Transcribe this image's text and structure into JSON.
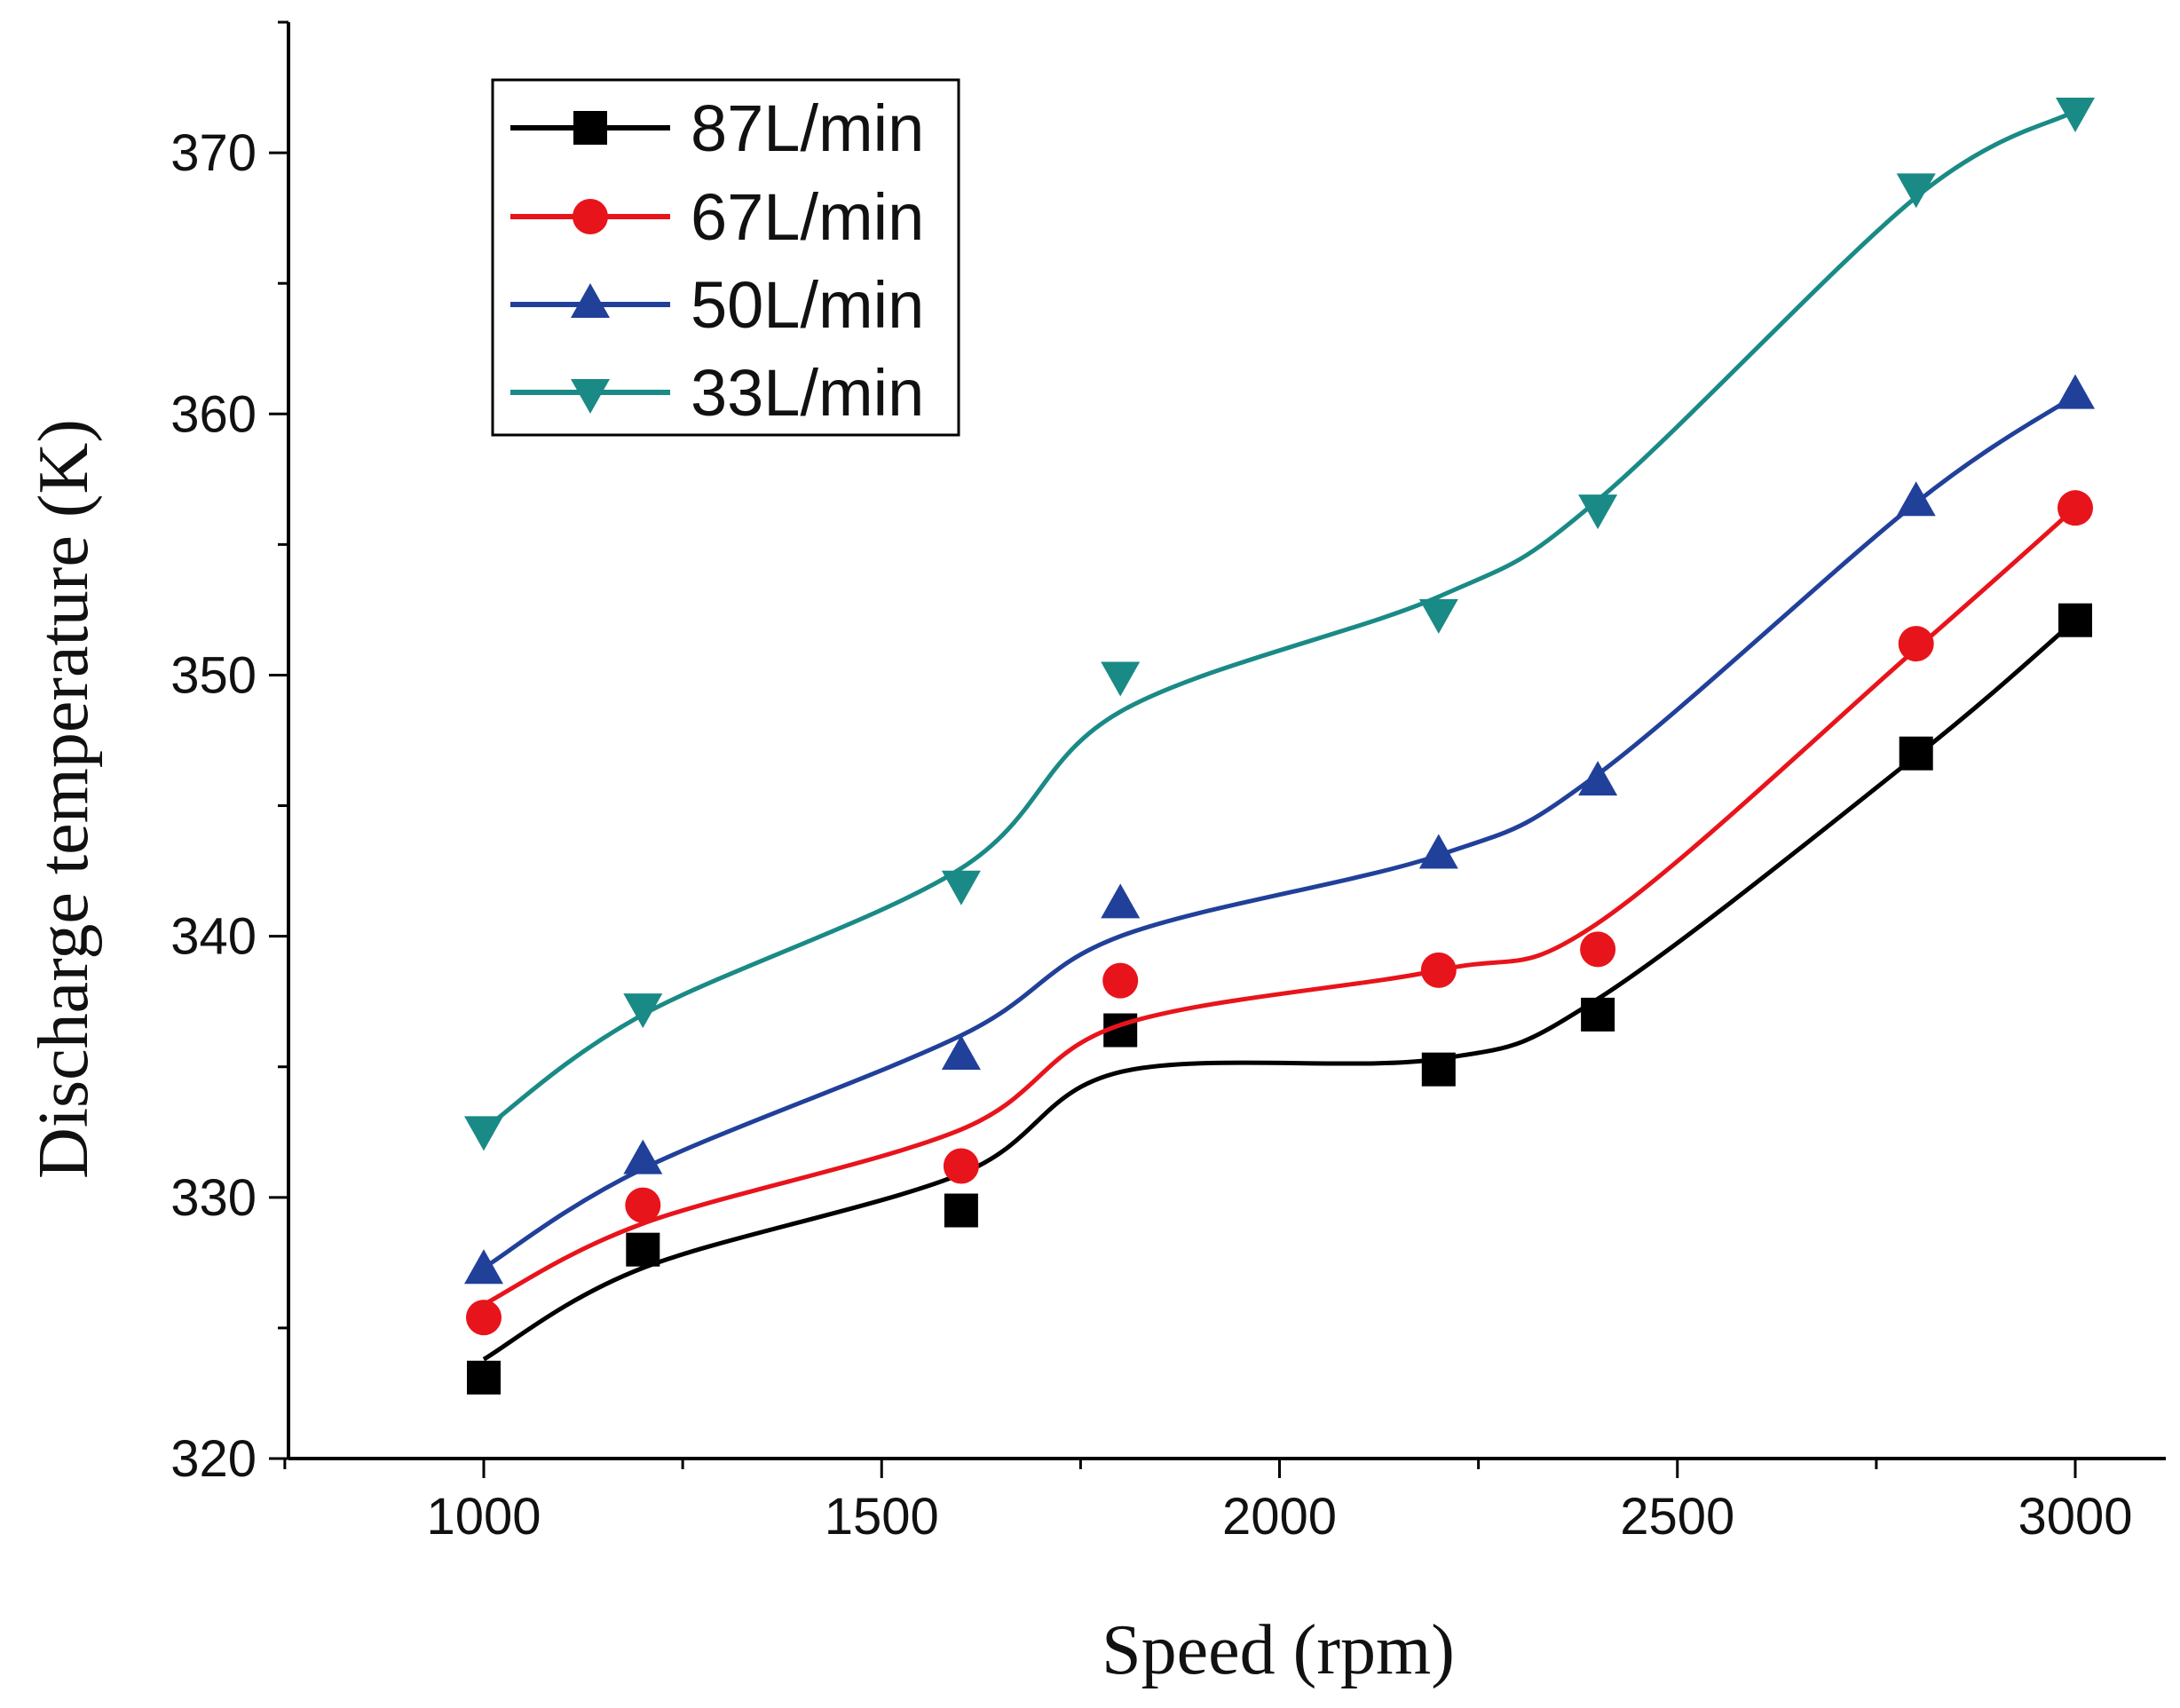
{
  "chart_data": {
    "type": "line",
    "title": "",
    "xlabel": "Speed (rpm)",
    "ylabel": "Discharge temperature (K)",
    "xlim": [
      750,
      3110
    ],
    "ylim": [
      320,
      375
    ],
    "x_ticks": [
      1000,
      1500,
      2000,
      2500,
      3000
    ],
    "y_ticks": [
      320,
      330,
      340,
      350,
      360,
      370
    ],
    "x": [
      1000,
      1200,
      1600,
      1800,
      2200,
      2400,
      2800,
      3000
    ],
    "grid": false,
    "legend_position": "top-left",
    "series": [
      {
        "name": "87L/min",
        "color": "#000000",
        "marker": "square",
        "values": [
          323.1,
          328.0,
          329.5,
          336.4,
          334.9,
          337.0,
          347.0,
          352.1
        ],
        "fit": [
          323.8,
          327.3,
          330.9,
          334.8,
          335.3,
          337.6,
          346.9,
          352.1
        ]
      },
      {
        "name": "67L/min",
        "color": "#e8141b",
        "marker": "circle",
        "values": [
          325.4,
          329.7,
          331.2,
          338.3,
          338.7,
          339.5,
          351.2,
          356.4
        ],
        "fit": [
          325.9,
          329.0,
          332.6,
          336.6,
          338.7,
          340.5,
          351.0,
          356.4
        ]
      },
      {
        "name": "50L/min",
        "color": "#21409a",
        "marker": "triangle-up",
        "values": [
          327.2,
          331.4,
          335.4,
          341.2,
          343.1,
          345.9,
          356.6,
          360.7
        ],
        "fit": [
          327.3,
          331.1,
          336.2,
          340.0,
          343.1,
          346.2,
          356.6,
          360.7
        ]
      },
      {
        "name": "33L/min",
        "color": "#1a8a86",
        "marker": "triangle-down",
        "values": [
          332.6,
          337.3,
          342.0,
          350.0,
          352.4,
          356.4,
          368.7,
          371.6
        ],
        "fit": [
          332.6,
          337.0,
          342.6,
          348.6,
          353.0,
          356.7,
          368.3,
          371.6
        ]
      }
    ]
  }
}
